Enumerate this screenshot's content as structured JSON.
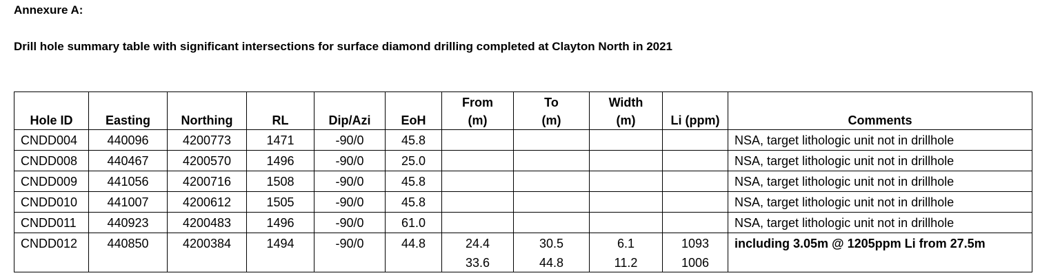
{
  "annexure_title": "Annexure A:",
  "caption": "Drill hole summary table with significant intersections for surface diamond drilling completed at Clayton North in 2021",
  "table": {
    "headers": {
      "hole_id": "Hole ID",
      "easting": "Easting",
      "northing": "Northing",
      "rl": "RL",
      "dip_azi": "Dip/Azi",
      "eoh": "EoH",
      "from_1": "From",
      "from_2": "(m)",
      "to_1": "To",
      "to_2": "(m)",
      "width_1": "Width",
      "width_2": "(m)",
      "li": "Li (ppm)",
      "comments": "Comments"
    },
    "rows": [
      {
        "hole_id": "CNDD004",
        "easting": "440096",
        "northing": "4200773",
        "rl": "1471",
        "dip_azi": "-90/0",
        "eoh": "45.8",
        "from": "",
        "to": "",
        "width": "",
        "li": "",
        "comments": "NSA, target lithologic unit not in drillhole"
      },
      {
        "hole_id": "CNDD008",
        "easting": "440467",
        "northing": "4200570",
        "rl": "1496",
        "dip_azi": "-90/0",
        "eoh": "25.0",
        "from": "",
        "to": "",
        "width": "",
        "li": "",
        "comments": "NSA, target lithologic unit not in drillhole"
      },
      {
        "hole_id": "CNDD009",
        "easting": "441056",
        "northing": "4200716",
        "rl": "1508",
        "dip_azi": "-90/0",
        "eoh": "45.8",
        "from": "",
        "to": "",
        "width": "",
        "li": "",
        "comments": "NSA, target lithologic unit not in drillhole"
      },
      {
        "hole_id": "CNDD010",
        "easting": "441007",
        "northing": "4200612",
        "rl": "1505",
        "dip_azi": "-90/0",
        "eoh": "45.8",
        "from": "",
        "to": "",
        "width": "",
        "li": "",
        "comments": "NSA, target lithologic unit not in drillhole"
      },
      {
        "hole_id": "CNDD011",
        "easting": "440923",
        "northing": "4200483",
        "rl": "1496",
        "dip_azi": "-90/0",
        "eoh": "61.0",
        "from": "",
        "to": "",
        "width": "",
        "li": "",
        "comments": "NSA, target lithologic unit not in drillhole"
      },
      {
        "hole_id": "CNDD012",
        "easting": "440850",
        "northing": "4200384",
        "rl": "1494",
        "dip_azi": "-90/0",
        "eoh": "44.8",
        "from": "24.4",
        "to": "30.5",
        "width": "6.1",
        "li": "1093",
        "comments": "including 3.05m @ 1205ppm Li from 27.5m"
      }
    ],
    "extra_interval": {
      "from": "33.6",
      "to": "44.8",
      "width": "11.2",
      "li": "1006"
    }
  }
}
